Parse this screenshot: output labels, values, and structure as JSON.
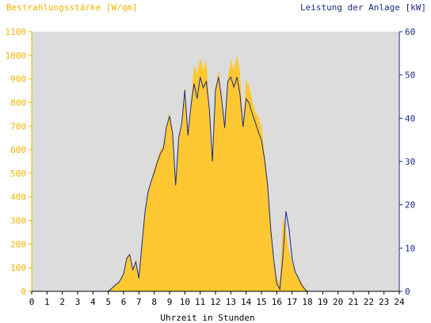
{
  "chart_data": {
    "type": "area",
    "title_left": "Bestrahlungsstärke [W/qm]",
    "title_right": "Leistung der Anlage [kW]",
    "xlabel": "Uhrzeit in Stunden",
    "x_ticks": [
      "0",
      "1",
      "2",
      "3",
      "4",
      "5",
      "6",
      "7",
      "8",
      "9",
      "10",
      "11",
      "12",
      "13",
      "14",
      "15",
      "16",
      "17",
      "18",
      "19",
      "20",
      "21",
      "22",
      "23",
      "24"
    ],
    "y_left_ticks": [
      "0",
      "100",
      "200",
      "300",
      "400",
      "500",
      "600",
      "700",
      "800",
      "900",
      "1000",
      "1100"
    ],
    "y_right_ticks": [
      "0",
      "10",
      "20",
      "30",
      "40",
      "50",
      "60"
    ],
    "xlim": [
      0,
      24
    ],
    "ylim_left": [
      0,
      1100
    ],
    "ylim_right": [
      0,
      60
    ],
    "grid": false,
    "colors": {
      "plot_bg": "#dcdcdc",
      "irradiance_fill": "#ffc832",
      "power_line": "#1a2a80",
      "left_axis_text": "#f0b400",
      "right_axis_text": "#1a2a80",
      "bottom_axis_text": "#000000"
    },
    "series": [
      {
        "axis": "left",
        "render": "area",
        "x": [
          0,
          5,
          5.2,
          5.5,
          5.7,
          6,
          6.2,
          6.4,
          6.6,
          6.8,
          7,
          7.2,
          7.4,
          7.6,
          7.8,
          8,
          8.2,
          8.4,
          8.6,
          8.8,
          9,
          9.2,
          9.4,
          9.6,
          9.8,
          10,
          10.2,
          10.4,
          10.6,
          10.8,
          11,
          11.2,
          11.4,
          11.6,
          11.8,
          12,
          12.2,
          12.4,
          12.6,
          12.8,
          13,
          13.2,
          13.4,
          13.6,
          13.8,
          14,
          14.2,
          14.4,
          14.6,
          14.8,
          15,
          15.2,
          15.4,
          15.6,
          15.8,
          16,
          16.2,
          16.4,
          16.6,
          16.8,
          17,
          17.2,
          17.4,
          17.6,
          17.8,
          18,
          18.2,
          18.4,
          18.6,
          18.8,
          19,
          24
        ],
        "values": [
          0,
          0,
          15,
          30,
          40,
          80,
          150,
          160,
          90,
          140,
          60,
          200,
          340,
          420,
          470,
          520,
          560,
          600,
          620,
          700,
          760,
          680,
          460,
          650,
          720,
          870,
          660,
          800,
          960,
          920,
          990,
          940,
          980,
          780,
          560,
          860,
          940,
          820,
          700,
          900,
          980,
          940,
          1000,
          930,
          700,
          900,
          870,
          810,
          760,
          740,
          700,
          590,
          470,
          300,
          130,
          60,
          30,
          320,
          250,
          170,
          120,
          80,
          60,
          40,
          20,
          0,
          0,
          0,
          0,
          0,
          0,
          0
        ]
      },
      {
        "axis": "right",
        "render": "line",
        "x": [
          0,
          5,
          5.2,
          5.5,
          5.7,
          6,
          6.2,
          6.4,
          6.6,
          6.8,
          7,
          7.2,
          7.4,
          7.6,
          7.8,
          8,
          8.2,
          8.4,
          8.6,
          8.8,
          9,
          9.2,
          9.4,
          9.6,
          9.8,
          10,
          10.2,
          10.4,
          10.6,
          10.8,
          11,
          11.2,
          11.4,
          11.6,
          11.8,
          12,
          12.2,
          12.4,
          12.6,
          12.8,
          13,
          13.2,
          13.4,
          13.6,
          13.8,
          14,
          14.2,
          14.4,
          14.6,
          14.8,
          15,
          15.2,
          15.4,
          15.6,
          15.8,
          16,
          16.2,
          16.4,
          16.6,
          16.8,
          17,
          17.2,
          17.4,
          17.6,
          17.8,
          18,
          18.2,
          18.4,
          18.6,
          18.8,
          19,
          24
        ],
        "values": [
          0,
          0,
          0.6,
          1.6,
          2.1,
          4,
          7.6,
          8.5,
          5,
          6.8,
          3,
          11,
          18.5,
          23,
          25.4,
          27.5,
          29.8,
          31.8,
          33,
          38,
          40.5,
          36.4,
          24.5,
          35.5,
          39,
          46.5,
          36,
          43,
          48,
          44.5,
          49.5,
          47,
          48.5,
          42,
          30,
          46.5,
          49.5,
          44.5,
          37.8,
          48.5,
          49.5,
          47.2,
          49.5,
          45.5,
          38,
          44.5,
          43.5,
          41,
          39,
          36.8,
          35,
          30.5,
          24.8,
          14.5,
          7.4,
          1.8,
          0.5,
          8,
          18.5,
          14.5,
          7.6,
          4.5,
          3.2,
          1.6,
          0.6,
          0,
          0,
          0,
          0,
          0,
          0,
          0
        ]
      }
    ]
  }
}
